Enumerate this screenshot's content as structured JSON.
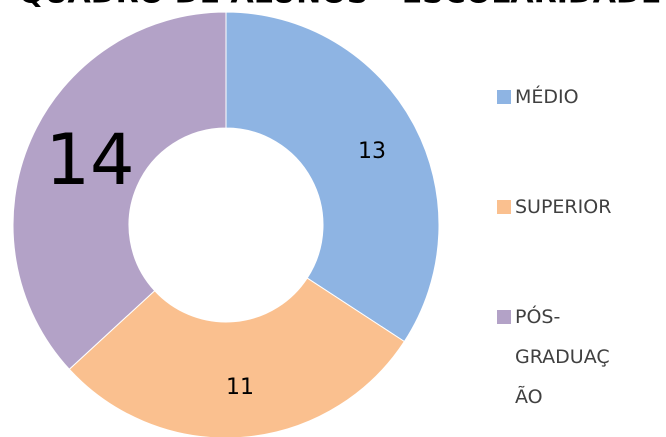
{
  "chart_data": {
    "type": "donut",
    "title": "QUADRO DE ALUNOS - ESCOLARIDADE",
    "categories": [
      "MÉDIO",
      "SUPERIOR",
      "PÓS-GRADUAÇÃO"
    ],
    "values": [
      13,
      11,
      14
    ],
    "colors": [
      "#8eb4e3",
      "#fac08f",
      "#b3a2c7"
    ],
    "legend": "right"
  }
}
